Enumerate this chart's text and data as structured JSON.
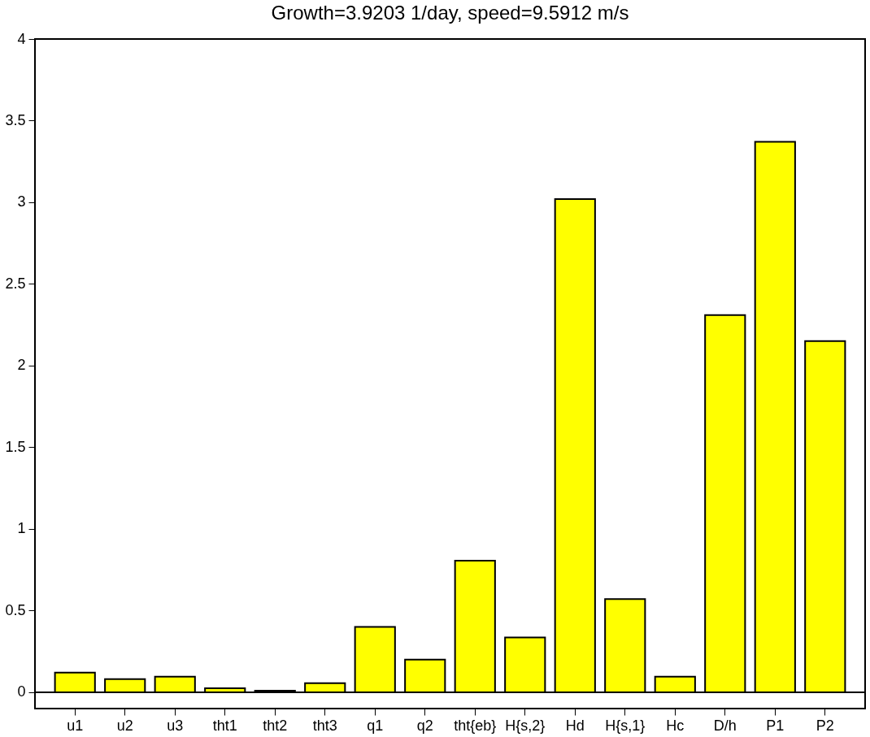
{
  "chart_data": {
    "type": "bar",
    "title": "Growth=3.9203 1/day, speed=9.5912 m/s",
    "categories": [
      "u1",
      "u2",
      "u3",
      "tht1",
      "tht2",
      "tht3",
      "q1",
      "q2",
      "tht{eb}",
      "H{s,2}",
      "Hd",
      "H{s,1}",
      "Hc",
      "D/h",
      "P1",
      "P2"
    ],
    "values": [
      0.12,
      0.08,
      0.095,
      0.025,
      0.01,
      0.055,
      0.4,
      0.2,
      0.805,
      0.335,
      3.02,
      0.57,
      0.095,
      2.31,
      3.37,
      2.15
    ],
    "color": "#ffff00",
    "ylim": [
      -0.1,
      4
    ],
    "yticks": [
      0,
      0.5,
      1,
      1.5,
      2,
      2.5,
      3,
      3.5,
      4
    ],
    "grid": false,
    "ref_lines": [
      {
        "axis": "y",
        "value": 0
      }
    ]
  }
}
